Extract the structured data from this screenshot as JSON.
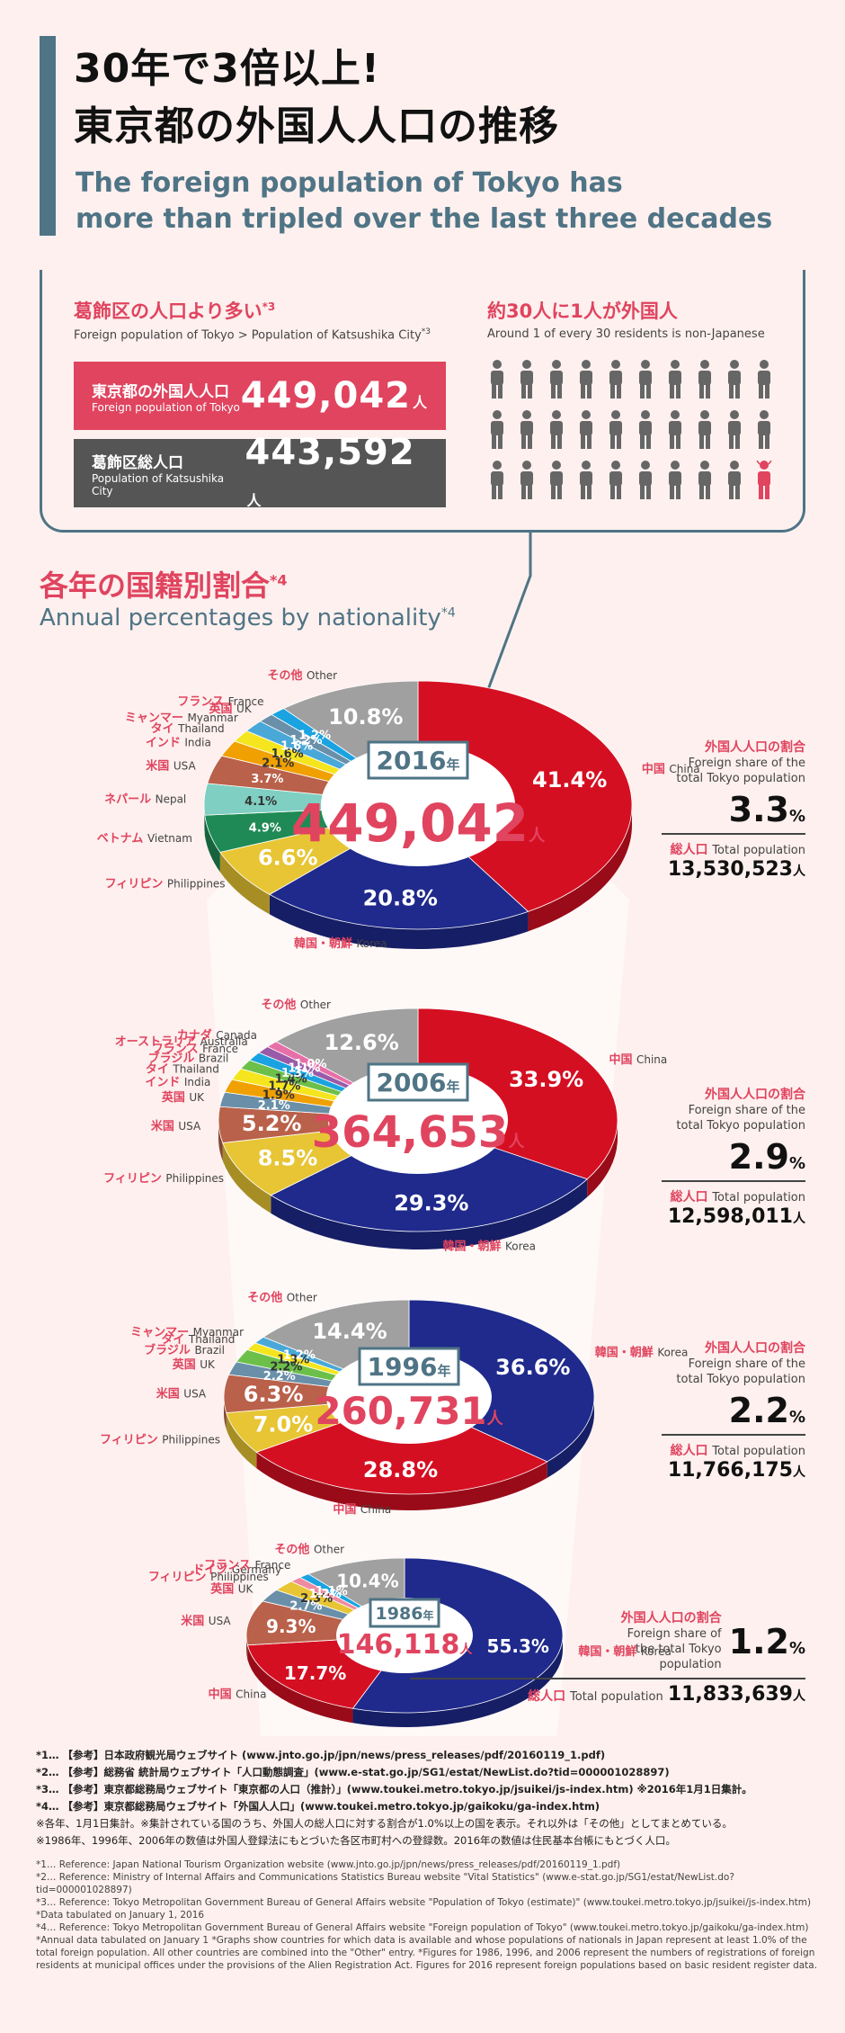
{
  "header": {
    "title_jp_line1": "30年で3倍以上!",
    "title_jp_line2": "東京都の外国人人口の推移",
    "title_en_line1": "The foreign population of Tokyo has",
    "title_en_line2": "more than tripled over the last three decades"
  },
  "comparison": {
    "heading_jp": "葛飾区の人口より多い",
    "heading_jp_note": "*3",
    "heading_en": "Foreign population of Tokyo > Population of Katsushika City",
    "heading_en_note": "*3",
    "rows": [
      {
        "label_jp": "東京都の外国人人口",
        "label_en": "Foreign population of Tokyo",
        "value": "449,042",
        "unit": "人",
        "color": "#e0445f"
      },
      {
        "label_jp": "葛飾区総人口",
        "label_en": "Population of Katsushika City",
        "value": "443,592",
        "unit": "人",
        "color": "#555555"
      }
    ]
  },
  "ratio": {
    "heading_jp": "約30人に1人が外国人",
    "heading_en": "Around 1 of every 30 residents is non-Japanese",
    "total_icons": 30,
    "highlight_icons": 1,
    "person_color": "#666666",
    "highlight_color": "#e0445f"
  },
  "section": {
    "heading_jp": "各年の国籍別割合",
    "heading_note": "*4",
    "heading_en": "Annual percentages by nationality",
    "heading_en_note": "*4"
  },
  "colors": {
    "China": "#d50f22",
    "Korea": "#1f2a8c",
    "Philippines": "#e7c534",
    "USA": "#b9614a",
    "Vietnam": "#1f8a55",
    "Nepal": "#7fcfc2",
    "India": "#f0a000",
    "Thailand": "#f5e51e",
    "Myanmar": "#4aa8d8",
    "UK": "#6a8fa8",
    "France": "#1aa3e0",
    "Other": "#a0a0a0",
    "Brazil": "#6cc04a",
    "Australia": "#9a5aa8",
    "Canada": "#e76fa8",
    "Germany": "#f08aa0"
  },
  "chart_data": [
    {
      "type": "pie",
      "year": "2016",
      "year_unit": "年",
      "total": "449,042",
      "total_unit": "人",
      "slices": [
        {
          "key": "China",
          "name_jp": "中国",
          "name_en": "China",
          "value": 41.4,
          "label": "41.4%"
        },
        {
          "key": "Korea",
          "name_jp": "韓国・朝鮮",
          "name_en": "Korea",
          "value": 20.8,
          "label": "20.8%"
        },
        {
          "key": "Philippines",
          "name_jp": "フィリピン",
          "name_en": "Philippines",
          "value": 6.6,
          "label": "6.6%"
        },
        {
          "key": "Vietnam",
          "name_jp": "ベトナム",
          "name_en": "Vietnam",
          "value": 4.9,
          "label": "4.9%"
        },
        {
          "key": "Nepal",
          "name_jp": "ネパール",
          "name_en": "Nepal",
          "value": 4.1,
          "label": "4.1%"
        },
        {
          "key": "USA",
          "name_jp": "米国",
          "name_en": "USA",
          "value": 3.7,
          "label": "3.7%"
        },
        {
          "key": "India",
          "name_jp": "インド",
          "name_en": "India",
          "value": 2.1,
          "label": "2.1%"
        },
        {
          "key": "Thailand",
          "name_jp": "タイ",
          "name_en": "Thailand",
          "value": 1.6,
          "label": "1.6%"
        },
        {
          "key": "Myanmar",
          "name_jp": "ミャンマー",
          "name_en": "Myanmar",
          "value": 1.6,
          "label": "1.6%"
        },
        {
          "key": "UK",
          "name_jp": "英国",
          "name_en": "UK",
          "value": 1.2,
          "label": "1.2%"
        },
        {
          "key": "France",
          "name_jp": "フランス",
          "name_en": "France",
          "value": 1.2,
          "label": "1.2%"
        },
        {
          "key": "Other",
          "name_jp": "その他",
          "name_en": "Other",
          "value": 10.8,
          "label": "10.8%"
        }
      ],
      "share_jp": "外国人人口の割合",
      "share_en": "Foreign share of the total Tokyo population",
      "share": "3.3",
      "share_unit": "%",
      "pop_label_jp": "総人口",
      "pop_label_en": "Total population",
      "pop": "13,530,523",
      "pop_unit": "人"
    },
    {
      "type": "pie",
      "year": "2006",
      "year_unit": "年",
      "total": "364,653",
      "total_unit": "人",
      "slices": [
        {
          "key": "China",
          "name_jp": "中国",
          "name_en": "China",
          "value": 33.9,
          "label": "33.9%"
        },
        {
          "key": "Korea",
          "name_jp": "韓国・朝鮮",
          "name_en": "Korea",
          "value": 29.3,
          "label": "29.3%"
        },
        {
          "key": "Philippines",
          "name_jp": "フィリピン",
          "name_en": "Philippines",
          "value": 8.5,
          "label": "8.5%"
        },
        {
          "key": "USA",
          "name_jp": "米国",
          "name_en": "USA",
          "value": 5.2,
          "label": "5.2%"
        },
        {
          "key": "UK",
          "name_jp": "英国",
          "name_en": "UK",
          "value": 2.1,
          "label": "2.1%"
        },
        {
          "key": "India",
          "name_jp": "インド",
          "name_en": "India",
          "value": 1.9,
          "label": "1.9%"
        },
        {
          "key": "Thailand",
          "name_jp": "タイ",
          "name_en": "Thailand",
          "value": 1.7,
          "label": "1.7%"
        },
        {
          "key": "Brazil",
          "name_jp": "ブラジル",
          "name_en": "Brazil",
          "value": 1.4,
          "label": "1.4%"
        },
        {
          "key": "France",
          "name_jp": "フランス",
          "name_en": "France",
          "value": 1.3,
          "label": "1.3%"
        },
        {
          "key": "Australia",
          "name_jp": "オーストラリア",
          "name_en": "Australia",
          "value": 1.1,
          "label": "1.1%"
        },
        {
          "key": "Canada",
          "name_jp": "カナダ",
          "name_en": "Canada",
          "value": 1.0,
          "label": "1.0%"
        },
        {
          "key": "Other",
          "name_jp": "その他",
          "name_en": "Other",
          "value": 12.6,
          "label": "12.6%"
        }
      ],
      "share_jp": "外国人人口の割合",
      "share_en": "Foreign share of the total Tokyo population",
      "share": "2.9",
      "share_unit": "%",
      "pop_label_jp": "総人口",
      "pop_label_en": "Total population",
      "pop": "12,598,011",
      "pop_unit": "人"
    },
    {
      "type": "pie",
      "year": "1996",
      "year_unit": "年",
      "total": "260,731",
      "total_unit": "人",
      "slices": [
        {
          "key": "Korea",
          "name_jp": "韓国・朝鮮",
          "name_en": "Korea",
          "value": 36.6,
          "label": "36.6%"
        },
        {
          "key": "China",
          "name_jp": "中国",
          "name_en": "China",
          "value": 28.8,
          "label": "28.8%"
        },
        {
          "key": "Philippines",
          "name_jp": "フィリピン",
          "name_en": "Philippines",
          "value": 7.0,
          "label": "7.0%"
        },
        {
          "key": "USA",
          "name_jp": "米国",
          "name_en": "USA",
          "value": 6.3,
          "label": "6.3%"
        },
        {
          "key": "UK",
          "name_jp": "英国",
          "name_en": "UK",
          "value": 2.2,
          "label": "2.2%"
        },
        {
          "key": "Brazil",
          "name_jp": "ブラジル",
          "name_en": "Brazil",
          "value": 2.2,
          "label": "2.2%"
        },
        {
          "key": "Thailand",
          "name_jp": "タイ",
          "name_en": "Thailand",
          "value": 1.3,
          "label": "1.3%"
        },
        {
          "key": "Myanmar",
          "name_jp": "ミャンマー",
          "name_en": "Myanmar",
          "value": 1.2,
          "label": "1.2%"
        },
        {
          "key": "Other",
          "name_jp": "その他",
          "name_en": "Other",
          "value": 14.4,
          "label": "14.4%"
        }
      ],
      "share_jp": "外国人人口の割合",
      "share_en": "Foreign share of the total Tokyo population",
      "share": "2.2",
      "share_unit": "%",
      "pop_label_jp": "総人口",
      "pop_label_en": "Total population",
      "pop": "11,766,175",
      "pop_unit": "人"
    },
    {
      "type": "pie",
      "year": "1986",
      "year_unit": "年",
      "total": "146,118",
      "total_unit": "人",
      "slices": [
        {
          "key": "Korea",
          "name_jp": "韓国・朝鮮",
          "name_en": "Korea",
          "value": 55.3,
          "label": "55.3%"
        },
        {
          "key": "China",
          "name_jp": "中国",
          "name_en": "China",
          "value": 17.7,
          "label": "17.7%"
        },
        {
          "key": "USA",
          "name_jp": "米国",
          "name_en": "USA",
          "value": 9.3,
          "label": "9.3%"
        },
        {
          "key": "UK",
          "name_jp": "英国",
          "name_en": "UK",
          "value": 2.7,
          "label": "2.7%"
        },
        {
          "key": "Philippines",
          "name_jp": "フィリピン",
          "name_en": "Philippines",
          "value": 2.3,
          "label": "2.3%"
        },
        {
          "key": "Germany",
          "name_jp": "ドイツ",
          "name_en": "Germany",
          "value": 1.2,
          "label": "1.2%"
        },
        {
          "key": "France",
          "name_jp": "フランス",
          "name_en": "France",
          "value": 1.1,
          "label": "1.1%"
        },
        {
          "key": "Other",
          "name_jp": "その他",
          "name_en": "Other",
          "value": 10.4,
          "label": "10.4%"
        }
      ],
      "share_jp": "外国人人口の割合",
      "share_en": "Foreign share of the total Tokyo population",
      "share": "1.2",
      "share_unit": "%",
      "pop_label_jp": "総人口",
      "pop_label_en": "Total population",
      "pop": "11,833,639",
      "pop_unit": "人"
    }
  ],
  "notes": {
    "jp": [
      "*1… 【参考】日本政府観光局ウェブサイト (www.jnto.go.jp/jpn/news/press_releases/pdf/20160119_1.pdf)",
      "*2… 【参考】総務省 統計局ウェブサイト「人口動態調査」(www.e-stat.go.jp/SG1/estat/NewList.do?tid=000001028897)",
      "*3… 【参考】東京都総務局ウェブサイト「東京都の人口（推計）」(www.toukei.metro.tokyo.jp/jsuikei/js-index.htm) ※2016年1月1日集計。",
      "*4… 【参考】東京都総務局ウェブサイト「外国人人口」(www.toukei.metro.tokyo.jp/gaikoku/ga-index.htm)",
      "※各年、1月1日集計。※集計されている国のうち、外国人の総人口に対する割合が1.0%以上の国を表示。それ以外は「その他」としてまとめている。",
      "※1986年、1996年、2006年の数値は外国人登録法にもとづいた各区市町村への登録数。2016年の数値は住民基本台帳にもとづく人口。"
    ],
    "en": [
      "*1… Reference: Japan National Tourism Organization website (www.jnto.go.jp/jpn/news/press_releases/pdf/20160119_1.pdf)",
      "*2… Reference: Ministry of Internal Affairs and Communications Statistics Bureau website \"Vital Statistics\" (www.e-stat.go.jp/SG1/estat/NewList.do?tid=000001028897)",
      "*3… Reference: Tokyo Metropolitan Government Bureau of General Affairs website \"Population of Tokyo (estimate)\" (www.toukei.metro.tokyo.jp/jsuikei/js-index.htm) *Data tabulated on January 1, 2016",
      "*4… Reference: Tokyo Metropolitan Government Bureau of General Affairs website \"Foreign population of Tokyo\" (www.toukei.metro.tokyo.jp/gaikoku/ga-index.htm) *Annual data tabulated on January 1 *Graphs show countries for which data is available and whose populations of nationals in Japan represent at least 1.0% of the total foreign population. All other countries are combined into the \"Other\" entry. *Figures for 1986, 1996, and 2006 represent the numbers of registrations of foreign residents at municipal offices under the provisions of the Alien Registration Act. Figures for 2016 represent foreign populations based on basic resident register data."
    ]
  }
}
